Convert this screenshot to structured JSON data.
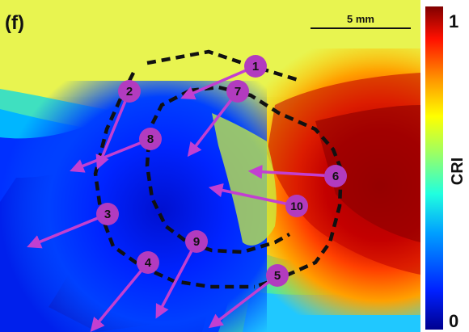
{
  "panel_label": "(f)",
  "scale_bar_label": "5 mm",
  "colorbar": {
    "title": "CRI",
    "max_label": "1",
    "min_label": "0"
  },
  "markers": [
    {
      "label": "1"
    },
    {
      "label": "2"
    },
    {
      "label": "3"
    },
    {
      "label": "4"
    },
    {
      "label": "5"
    },
    {
      "label": "6"
    },
    {
      "label": "7"
    },
    {
      "label": "8"
    },
    {
      "label": "9"
    },
    {
      "label": "10"
    }
  ],
  "colors": {
    "marker_fill": "#b23bbf",
    "arrow": "#c23fd1",
    "outline": "#111111",
    "colormap": [
      "#00008f",
      "#0020ff",
      "#00a0ff",
      "#20ffdf",
      "#a0ff60",
      "#ffff00",
      "#ff9000",
      "#ff1000",
      "#800000"
    ]
  }
}
